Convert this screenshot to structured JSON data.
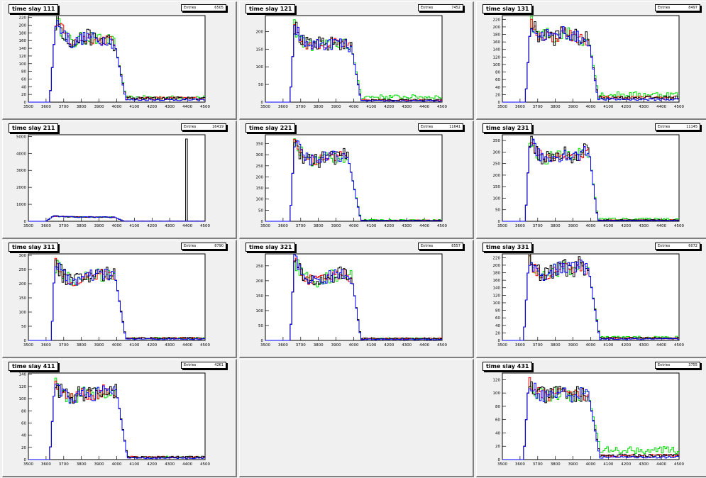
{
  "figure": {
    "entries_label": "Entries",
    "x_ticks": [
      "3500",
      "3600",
      "3700",
      "3800",
      "3900",
      "4000",
      "4100",
      "4200",
      "4300",
      "4400",
      "4500"
    ],
    "series_colors": {
      "black": "#000000",
      "red": "#ff0000",
      "green": "#00dd00",
      "blue": "#0000ff"
    }
  },
  "chart_data": [
    {
      "type": "line",
      "title": "time slay 111",
      "entries": "6505",
      "xlim": [
        3500,
        4500
      ],
      "ylim": [
        0,
        225
      ],
      "yticks": [
        0,
        20,
        40,
        60,
        80,
        100,
        120,
        140,
        160,
        180,
        200,
        220
      ],
      "profile": {
        "start": 3620,
        "rise": 3655,
        "fall": 3990,
        "end": 4050,
        "plateau": [
          210,
          180,
          150,
          165,
          170,
          160,
          165,
          150
        ],
        "tail": 10,
        "tail_green": 12,
        "spike": null
      }
    },
    {
      "type": "line",
      "title": "time slay 121",
      "entries": "7452",
      "xlim": [
        3500,
        4500
      ],
      "ylim": [
        0,
        245
      ],
      "yticks": [
        0,
        50,
        100,
        150,
        200
      ],
      "profile": {
        "start": 3640,
        "rise": 3665,
        "fall": 3990,
        "end": 4040,
        "plateau": [
          215,
          170,
          160,
          165,
          160,
          170,
          165,
          150
        ],
        "tail": 6,
        "tail_green": 15,
        "spike": null
      }
    },
    {
      "type": "line",
      "title": "time slay 131",
      "entries": "8497",
      "xlim": [
        3500,
        4500
      ],
      "ylim": [
        0,
        230
      ],
      "yticks": [
        0,
        20,
        40,
        60,
        80,
        100,
        120,
        140,
        160,
        180,
        200,
        220
      ],
      "profile": {
        "start": 3630,
        "rise": 3660,
        "fall": 3990,
        "end": 4040,
        "plateau": [
          210,
          175,
          180,
          170,
          190,
          175,
          170,
          165
        ],
        "tail": 12,
        "tail_green": 20,
        "spike": null
      }
    },
    {
      "type": "line",
      "title": "time slay 211",
      "entries": "16419",
      "xlim": [
        3500,
        4500
      ],
      "ylim": [
        0,
        5100
      ],
      "yticks": [
        0,
        1000,
        2000,
        3000,
        4000,
        5000
      ],
      "profile": {
        "start": 3600,
        "rise": 3640,
        "fall": 3990,
        "end": 4040,
        "plateau": [
          300,
          280,
          260,
          250,
          250,
          240,
          250,
          230
        ],
        "tail": 5,
        "tail_green": 5,
        "spike": {
          "x": 4390,
          "y": 4850
        }
      }
    },
    {
      "type": "line",
      "title": "time slay 221",
      "entries": "11641",
      "xlim": [
        3500,
        4500
      ],
      "ylim": [
        0,
        390
      ],
      "yticks": [
        0,
        50,
        100,
        150,
        200,
        250,
        300,
        350
      ],
      "profile": {
        "start": 3640,
        "rise": 3665,
        "fall": 3970,
        "end": 4040,
        "plateau": [
          360,
          300,
          280,
          270,
          290,
          290,
          300,
          280
        ],
        "tail": 4,
        "tail_green": 6,
        "spike": null
      }
    },
    {
      "type": "line",
      "title": "time slay 231",
      "entries": "11145",
      "xlim": [
        3500,
        4500
      ],
      "ylim": [
        0,
        375
      ],
      "yticks": [
        0,
        50,
        100,
        150,
        200,
        250,
        300,
        350
      ],
      "profile": {
        "start": 3630,
        "rise": 3655,
        "fall": 3990,
        "end": 4040,
        "plateau": [
          350,
          290,
          270,
          280,
          290,
          280,
          290,
          310
        ],
        "tail": 5,
        "tail_green": 10,
        "spike": null
      }
    },
    {
      "type": "line",
      "title": "time slay 311",
      "entries": "8790",
      "xlim": [
        3500,
        4500
      ],
      "ylim": [
        0,
        305
      ],
      "yticks": [
        0,
        50,
        100,
        150,
        200,
        250,
        300
      ],
      "profile": {
        "start": 3630,
        "rise": 3650,
        "fall": 3990,
        "end": 4050,
        "plateau": [
          270,
          230,
          210,
          215,
          225,
          230,
          235,
          230
        ],
        "tail": 8,
        "tail_green": 8,
        "spike": null
      }
    },
    {
      "type": "line",
      "title": "time slay 321",
      "entries": "8557",
      "xlim": [
        3500,
        4500
      ],
      "ylim": [
        0,
        290
      ],
      "yticks": [
        0,
        50,
        100,
        150,
        200,
        250
      ],
      "profile": {
        "start": 3640,
        "rise": 3665,
        "fall": 3990,
        "end": 4040,
        "plateau": [
          270,
          220,
          200,
          200,
          210,
          220,
          225,
          210
        ],
        "tail": 6,
        "tail_green": 6,
        "spike": null
      }
    },
    {
      "type": "line",
      "title": "time slay 331",
      "entries": "6072",
      "xlim": [
        3500,
        4500
      ],
      "ylim": [
        0,
        230
      ],
      "yticks": [
        0,
        20,
        40,
        60,
        80,
        100,
        120,
        140,
        160,
        180,
        200,
        220
      ],
      "profile": {
        "start": 3620,
        "rise": 3650,
        "fall": 3990,
        "end": 4050,
        "plateau": [
          215,
          180,
          175,
          185,
          195,
          190,
          200,
          185
        ],
        "tail": 6,
        "tail_green": 8,
        "spike": null
      }
    },
    {
      "type": "line",
      "title": "time slay 411",
      "entries": "4261",
      "xlim": [
        3500,
        4500
      ],
      "ylim": [
        0,
        142
      ],
      "yticks": [
        0,
        20,
        40,
        60,
        80,
        100,
        120,
        140
      ],
      "profile": {
        "start": 3620,
        "rise": 3650,
        "fall": 4000,
        "end": 4060,
        "plateau": [
          125,
          105,
          100,
          110,
          105,
          110,
          115,
          110
        ],
        "tail": 4,
        "tail_green": 4,
        "spike": null
      }
    },
    {
      "type": "empty"
    },
    {
      "type": "line",
      "title": "time slay 431",
      "entries": "3755",
      "xlim": [
        3500,
        4500
      ],
      "ylim": [
        0,
        130
      ],
      "yticks": [
        0,
        20,
        40,
        60,
        80,
        100,
        120
      ],
      "profile": {
        "start": 3620,
        "rise": 3650,
        "fall": 3990,
        "end": 4050,
        "plateau": [
          120,
          100,
          95,
          100,
          100,
          95,
          100,
          95
        ],
        "tail": 6,
        "tail_green": 14,
        "spike": null
      }
    }
  ]
}
